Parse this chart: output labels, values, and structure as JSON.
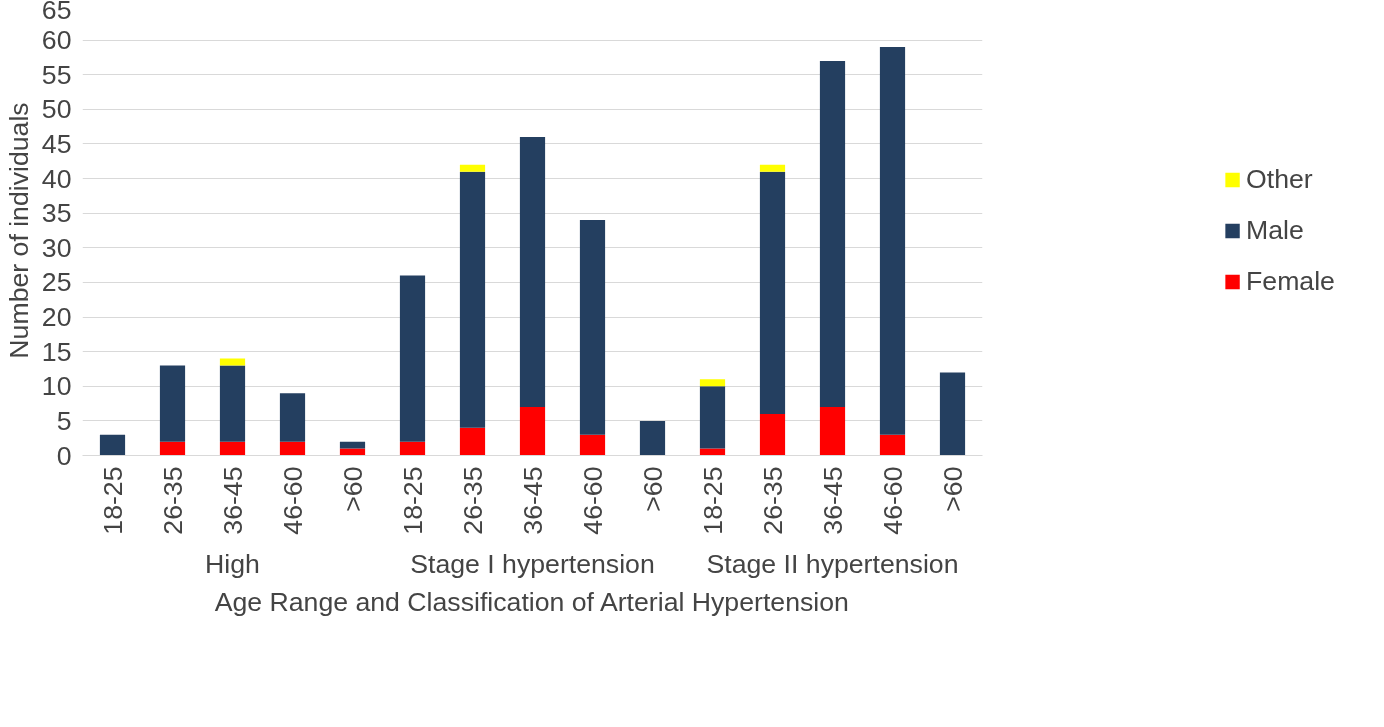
{
  "chart_data": {
    "type": "bar",
    "stacked": true,
    "xlabel": "Age Range and Classification of Arterial Hypertension",
    "ylabel": "Number of individuals",
    "categories": [
      "18-25",
      "26-35",
      "36-45",
      "46-60",
      ">60",
      "18-25",
      "26-35",
      "36-45",
      "46-60",
      ">60",
      "18-25",
      "26-35",
      "36-45",
      "46-60",
      ">60"
    ],
    "series": [
      {
        "name": "Female",
        "color": "#ff0000",
        "values": [
          0,
          2,
          2,
          2,
          1,
          2,
          4,
          7,
          3,
          0,
          1,
          6,
          7,
          3,
          0
        ]
      },
      {
        "name": "Male",
        "color": "#243f60",
        "values": [
          3,
          11,
          11,
          7,
          1,
          24,
          37,
          39,
          31,
          5,
          9,
          35,
          50,
          56,
          12
        ]
      },
      {
        "name": "Other",
        "color": "#ffff00",
        "values": [
          0,
          0,
          1,
          0,
          0,
          0,
          1,
          0,
          0,
          0,
          1,
          1,
          0,
          0,
          0
        ]
      }
    ],
    "annotations": [
      "High",
      "Stage I hypertension",
      "Stage II hypertension"
    ],
    "ylim": [
      0,
      65
    ],
    "yticks": [
      0,
      5,
      10,
      15,
      20,
      25,
      30,
      35,
      40,
      45,
      50,
      55,
      60,
      65
    ],
    "grid": "y",
    "legend": "right"
  }
}
